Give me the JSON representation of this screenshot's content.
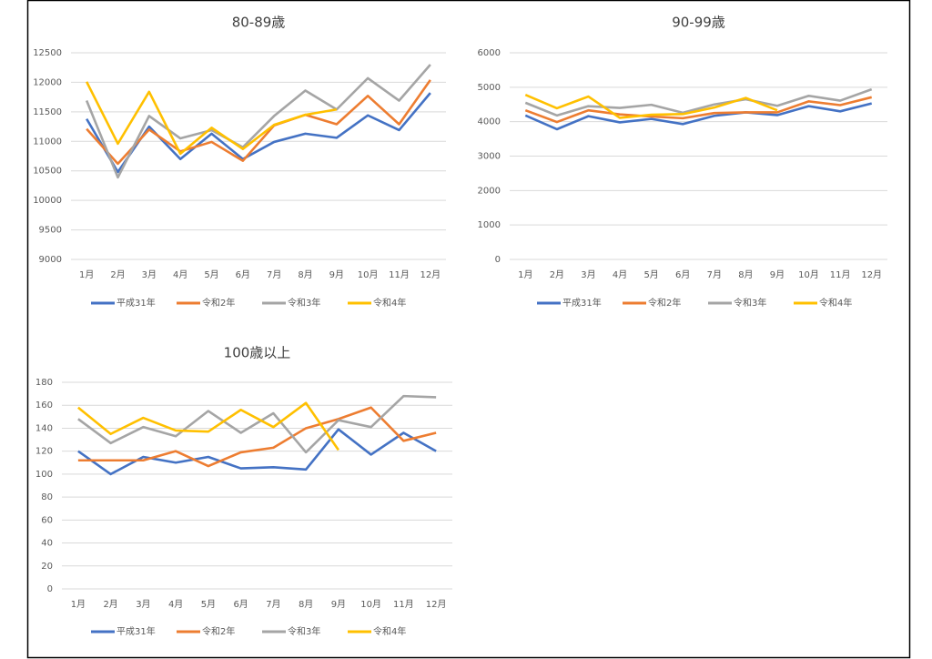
{
  "chart_data": [
    {
      "type": "line",
      "title": "80-89歳",
      "categories": [
        "1月",
        "2月",
        "3月",
        "4月",
        "5月",
        "6月",
        "7月",
        "8月",
        "9月",
        "10月",
        "11月",
        "12月"
      ],
      "ylim": [
        9000,
        12500
      ],
      "yticks": [
        9000,
        9500,
        10000,
        10500,
        11000,
        11500,
        12000,
        12500
      ],
      "grid": true,
      "series": [
        {
          "name": "平成31年",
          "color": "#4472c4",
          "values": [
            11380,
            10480,
            11250,
            10700,
            11130,
            10700,
            10990,
            11130,
            11060,
            11440,
            11190,
            11820
          ]
        },
        {
          "name": "令和2年",
          "color": "#ed7d31",
          "values": [
            11210,
            10620,
            11200,
            10830,
            10990,
            10670,
            11270,
            11450,
            11290,
            11770,
            11290,
            12040
          ]
        },
        {
          "name": "令和3年",
          "color": "#a5a5a5",
          "values": [
            11690,
            10390,
            11430,
            11050,
            11190,
            10900,
            11430,
            11860,
            11540,
            12070,
            11690,
            12300
          ]
        },
        {
          "name": "令和4年",
          "color": "#ffc000",
          "values": [
            12010,
            10960,
            11840,
            10790,
            11230,
            10870,
            11280,
            11450,
            11540,
            null,
            null,
            null
          ]
        }
      ]
    },
    {
      "type": "line",
      "title": "90-99歳",
      "categories": [
        "1月",
        "2月",
        "3月",
        "4月",
        "5月",
        "6月",
        "7月",
        "8月",
        "9月",
        "10月",
        "11月",
        "12月"
      ],
      "ylim": [
        0,
        6000
      ],
      "yticks": [
        0,
        1000,
        2000,
        3000,
        4000,
        5000,
        6000
      ],
      "grid": true,
      "series": [
        {
          "name": "平成31年",
          "color": "#4472c4",
          "values": [
            4180,
            3780,
            4160,
            3980,
            4080,
            3930,
            4170,
            4270,
            4190,
            4450,
            4300,
            4530
          ]
        },
        {
          "name": "令和2年",
          "color": "#ed7d31",
          "values": [
            4330,
            3990,
            4330,
            4210,
            4150,
            4100,
            4250,
            4270,
            4270,
            4590,
            4480,
            4710
          ]
        },
        {
          "name": "令和3年",
          "color": "#a5a5a5",
          "values": [
            4550,
            4180,
            4450,
            4400,
            4490,
            4260,
            4500,
            4650,
            4460,
            4750,
            4610,
            4940
          ]
        },
        {
          "name": "令和4年",
          "color": "#ffc000",
          "values": [
            4780,
            4390,
            4730,
            4110,
            4200,
            4220,
            4410,
            4690,
            4330,
            null,
            null,
            null
          ]
        }
      ]
    },
    {
      "type": "line",
      "title": "100歳以上",
      "categories": [
        "1月",
        "2月",
        "3月",
        "4月",
        "5月",
        "6月",
        "7月",
        "8月",
        "9月",
        "10月",
        "11月",
        "12月"
      ],
      "ylim": [
        0,
        180
      ],
      "yticks": [
        0,
        20,
        40,
        60,
        80,
        100,
        120,
        140,
        160,
        180
      ],
      "grid": true,
      "series": [
        {
          "name": "平成31年",
          "color": "#4472c4",
          "values": [
            120,
            100,
            115,
            110,
            115,
            105,
            106,
            104,
            139,
            117,
            136,
            120
          ]
        },
        {
          "name": "令和2年",
          "color": "#ed7d31",
          "values": [
            112,
            112,
            112,
            120,
            107,
            119,
            123,
            140,
            148,
            158,
            129,
            136
          ]
        },
        {
          "name": "令和3年",
          "color": "#a5a5a5",
          "values": [
            148,
            127,
            141,
            133,
            155,
            136,
            153,
            119,
            147,
            141,
            168,
            167
          ]
        },
        {
          "name": "令和4年",
          "color": "#ffc000",
          "values": [
            158,
            135,
            149,
            138,
            137,
            156,
            141,
            162,
            121,
            null,
            null,
            null
          ]
        }
      ]
    }
  ]
}
